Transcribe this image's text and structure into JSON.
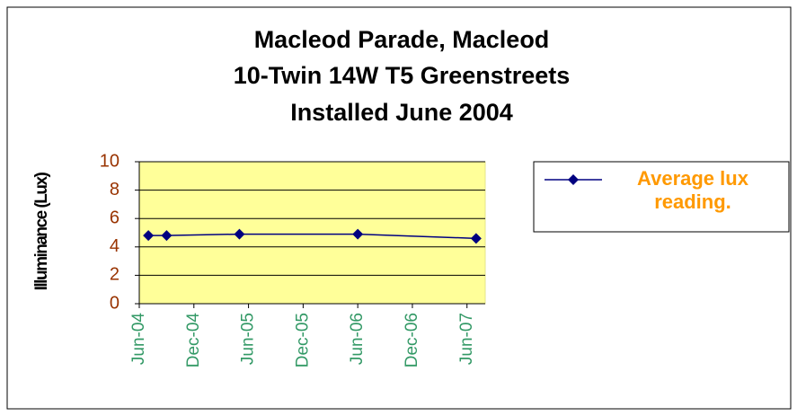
{
  "chart_data": {
    "type": "line",
    "title": [
      "Macleod Parade, Macleod",
      "10-Twin 14W T5 Greenstreets",
      "Installed June 2004"
    ],
    "y_label": "Illuminance (Lux)",
    "x": [
      "2004-07",
      "2004-09",
      "2005-05",
      "2006-06",
      "2007-07"
    ],
    "series": [
      {
        "name": "Average lux reading.",
        "color": "#000080",
        "values": [
          4.8,
          4.8,
          4.9,
          4.9,
          4.6
        ]
      }
    ],
    "xlim": [
      "2004-06",
      "2007-08"
    ],
    "xticks": [
      {
        "value": "2004-06",
        "label": "Jun-04"
      },
      {
        "value": "2004-12",
        "label": "Dec-04"
      },
      {
        "value": "2005-06",
        "label": "Jun-05"
      },
      {
        "value": "2005-12",
        "label": "Dec-05"
      },
      {
        "value": "2006-06",
        "label": "Jun-06"
      },
      {
        "value": "2006-12",
        "label": "Dec-06"
      },
      {
        "value": "2007-06",
        "label": "Jun-07"
      }
    ],
    "ylim": [
      0,
      10
    ],
    "yticks": [
      0,
      2,
      4,
      6,
      8,
      10
    ],
    "grid": true,
    "plot_background": "#ffff99",
    "legend": "right"
  }
}
